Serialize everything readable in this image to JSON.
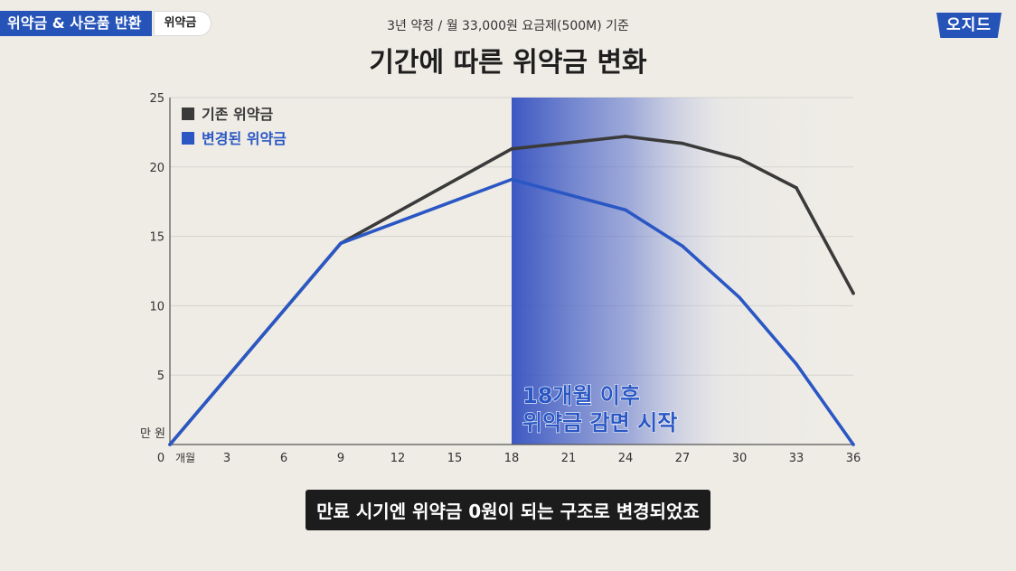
{
  "header": {
    "tag_main": "위약금 & 사은품 반환",
    "tag_sub": "위약금",
    "logo": "오지드",
    "brand_color": "#2553b8"
  },
  "subtitle": "3년 약정 / 월 33,000원 요금제(500M) 기준",
  "title": "기간에 따른 위약금 변화",
  "caption": "만료 시기엔 위약금 0원이 되는 구조로 변경되었죠",
  "chart_data": {
    "type": "line",
    "y_unit_label": "만 원",
    "x_unit_label": "개월",
    "ylim": [
      0,
      25
    ],
    "xlim": [
      0,
      36
    ],
    "y_ticks": [
      0,
      5,
      10,
      15,
      20,
      25
    ],
    "x_ticks": [
      0,
      3,
      6,
      9,
      12,
      15,
      18,
      21,
      24,
      27,
      30,
      33,
      36
    ],
    "grid": true,
    "legend_position": "top-left",
    "series": [
      {
        "name": "기존 위약금",
        "color": "#3a3a3a",
        "points": [
          [
            0,
            0
          ],
          [
            9,
            14.5
          ],
          [
            18,
            21.3
          ],
          [
            24,
            22.2
          ],
          [
            27,
            21.7
          ],
          [
            30,
            20.6
          ],
          [
            33,
            18.5
          ],
          [
            36,
            10.9
          ]
        ]
      },
      {
        "name": "변경된 위약금",
        "color": "#2a57c4",
        "points": [
          [
            0,
            0
          ],
          [
            9,
            14.5
          ],
          [
            18,
            19.1
          ],
          [
            24,
            16.9
          ],
          [
            27,
            14.3
          ],
          [
            30,
            10.6
          ],
          [
            33,
            5.8
          ],
          [
            36,
            0
          ]
        ]
      }
    ],
    "highlight": {
      "from_x": 18,
      "to_x": 36,
      "annotation": [
        "18개월 이후",
        "위약금 감면 시작"
      ]
    }
  }
}
